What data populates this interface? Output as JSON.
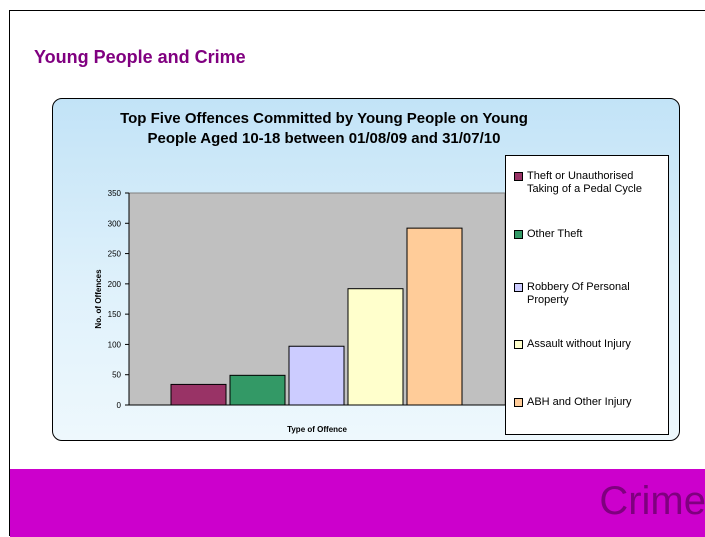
{
  "slide": {
    "title": "Young People and Crime",
    "footer_text": "Crime"
  },
  "chart_data": {
    "type": "bar",
    "title": "Top Five Offences Committed by Young People on Young People Aged 10-18 between 01/08/09 and 31/07/10",
    "title_lines": [
      "Top Five Offences Committed by Young People on Young",
      "People Aged 10-18 between 01/08/09 and 31/07/10"
    ],
    "xlabel": "Type of Offence",
    "ylabel": "No. of Offences",
    "ylim": [
      0,
      350
    ],
    "yticks": [
      0,
      50,
      100,
      150,
      200,
      250,
      300,
      350
    ],
    "grid": false,
    "legend_position": "right",
    "series": [
      {
        "name": "Theft or Unauthorised Taking of a Pedal Cycle",
        "value": 34,
        "color": "#993366"
      },
      {
        "name": "Other Theft",
        "value": 49,
        "color": "#339966"
      },
      {
        "name": "Robbery Of Personal Property",
        "value": 97,
        "color": "#ccccff"
      },
      {
        "name": "Assault without Injury",
        "value": 192,
        "color": "#ffffcc"
      },
      {
        "name": "ABH and Other Injury",
        "value": 292,
        "color": "#ffcc99"
      }
    ],
    "legend_labels": [
      [
        "Theft or Unauthorised",
        "Taking of a Pedal Cycle"
      ],
      [
        "Other Theft"
      ],
      [
        "Robbery Of Personal",
        "Property"
      ],
      [
        "Assault without Injury"
      ],
      [
        "ABH and Other Injury"
      ]
    ],
    "plot_background": "#c0c0c0"
  }
}
